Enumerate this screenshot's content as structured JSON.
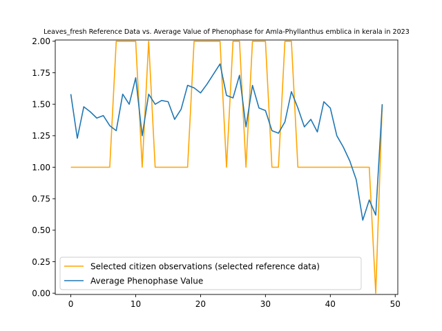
{
  "chart_data": {
    "type": "line",
    "title": "Leaves_fresh Reference Data vs. Average Value of Phenophase for Amla-Phyllanthus emblica in kerala in 2023",
    "xlabel": "",
    "ylabel": "",
    "xlim": [
      -2.4,
      50.4
    ],
    "ylim": [
      -0.01,
      2.01
    ],
    "xticks": [
      0,
      10,
      20,
      30,
      40,
      50
    ],
    "yticks": [
      0.0,
      0.25,
      0.5,
      0.75,
      1.0,
      1.25,
      1.5,
      1.75,
      2.0
    ],
    "xtick_labels": [
      "0",
      "10",
      "20",
      "30",
      "40",
      "50"
    ],
    "ytick_labels": [
      "0.00",
      "0.25",
      "0.50",
      "0.75",
      "1.00",
      "1.25",
      "1.50",
      "1.75",
      "2.00"
    ],
    "grid": false,
    "legend_position": "lower-left",
    "x": [
      0,
      1,
      2,
      3,
      4,
      5,
      6,
      7,
      8,
      9,
      10,
      11,
      12,
      13,
      14,
      15,
      16,
      17,
      18,
      19,
      20,
      21,
      22,
      23,
      24,
      25,
      26,
      27,
      28,
      29,
      30,
      31,
      32,
      33,
      34,
      35,
      36,
      37,
      38,
      39,
      40,
      41,
      42,
      43,
      44,
      45,
      46,
      47,
      48
    ],
    "series": [
      {
        "name": "Selected citizen observations (selected reference data)",
        "color": "#ffa500",
        "values": [
          1,
          1,
          1,
          1,
          1,
          1,
          1,
          2,
          2,
          2,
          2,
          1,
          2,
          1,
          1,
          1,
          1,
          1,
          1,
          2,
          2,
          2,
          2,
          2,
          1,
          2,
          2,
          1,
          2,
          2,
          2,
          1,
          1,
          2,
          2,
          1,
          1,
          1,
          1,
          1,
          1,
          1,
          1,
          1,
          1,
          1,
          1,
          0,
          1.5
        ]
      },
      {
        "name": "Average Phenophase Value",
        "color": "#1f77b4",
        "values": [
          1.58,
          1.23,
          1.48,
          1.44,
          1.39,
          1.41,
          1.33,
          1.29,
          1.58,
          1.5,
          1.71,
          1.25,
          1.58,
          1.5,
          1.53,
          1.52,
          1.38,
          1.46,
          1.65,
          1.63,
          1.59,
          1.66,
          1.74,
          1.82,
          1.57,
          1.55,
          1.73,
          1.32,
          1.65,
          1.47,
          1.45,
          1.29,
          1.27,
          1.36,
          1.6,
          1.47,
          1.32,
          1.38,
          1.28,
          1.52,
          1.47,
          1.25,
          1.16,
          1.05,
          0.9,
          0.58,
          0.74,
          0.62,
          1.5
        ]
      }
    ]
  }
}
